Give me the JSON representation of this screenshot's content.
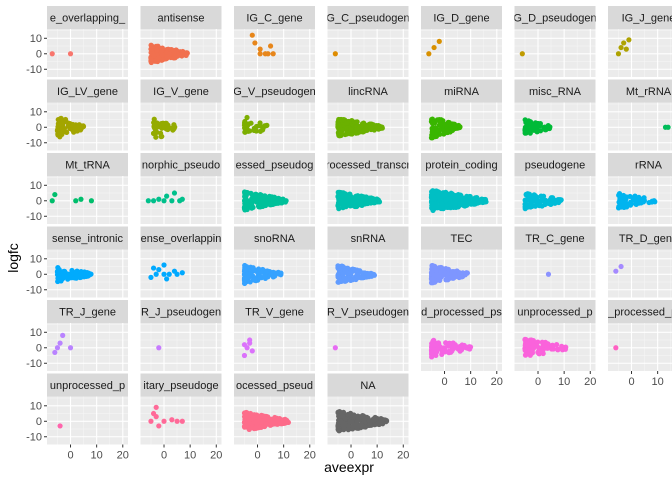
{
  "chart_data": {
    "type": "scatter",
    "xlabel": "aveexpr",
    "ylabel": "logfc",
    "xlim": [
      -9,
      22
    ],
    "ylim": [
      -15,
      16
    ],
    "x_ticks": [
      0,
      10,
      20
    ],
    "x_tick_labels": [
      "0",
      "10",
      "20"
    ],
    "y_ticks": [
      -10,
      0,
      10
    ],
    "y_tick_labels": [
      "-10",
      "0",
      "10"
    ],
    "grid": true,
    "legend": "none",
    "facets": [
      {
        "label": "e_overlapping_",
        "color": "#F8766D",
        "x": [
          -7,
          0
        ],
        "y": [
          0,
          0
        ]
      },
      {
        "label": "antisense",
        "color": "#F1704F",
        "x": [
          -5,
          9
        ],
        "y": [
          -6,
          6
        ],
        "n": 160
      },
      {
        "label": "IG_C_gene",
        "color": "#E7861B",
        "x": [
          -2,
          -1,
          1,
          3,
          5,
          6,
          1,
          4
        ],
        "y": [
          12,
          7,
          3,
          0,
          5,
          0,
          0,
          0
        ]
      },
      {
        "label": "G_C_pseudogen",
        "color": "#DE8C00",
        "x": [
          -6
        ],
        "y": [
          0
        ]
      },
      {
        "label": "IG_D_gene",
        "color": "#D89000",
        "x": [
          -6,
          -4,
          -2
        ],
        "y": [
          0,
          4,
          8
        ]
      },
      {
        "label": "G_D_pseudogen",
        "color": "#C09B00",
        "x": [
          -6
        ],
        "y": [
          0
        ]
      },
      {
        "label": "IG_J_gene",
        "color": "#AEA200",
        "x": [
          -5,
          -4,
          -3,
          -2,
          -1
        ],
        "y": [
          0,
          4,
          7,
          3,
          9
        ]
      },
      {
        "label": "IG_LV_gene",
        "color": "#A3A500",
        "x": [
          -5,
          5
        ],
        "y": [
          -6,
          7
        ],
        "n": 70
      },
      {
        "label": "IG_V_gene",
        "color": "#94AB00",
        "x": [
          -4,
          5
        ],
        "y": [
          -4,
          9
        ],
        "n": 45
      },
      {
        "label": "G_V_pseudogen",
        "color": "#7CAE00",
        "x": [
          -5,
          4
        ],
        "y": [
          -5,
          7
        ],
        "n": 30
      },
      {
        "label": "lincRNA",
        "color": "#6BB100",
        "x": [
          -5,
          12
        ],
        "y": [
          -6,
          6
        ],
        "n": 170
      },
      {
        "label": "miRNA",
        "color": "#39B600",
        "x": [
          -5,
          6
        ],
        "y": [
          -7,
          7
        ],
        "n": 80
      },
      {
        "label": "misc_RNA",
        "color": "#00BA38",
        "x": [
          -5,
          5
        ],
        "y": [
          -5,
          5
        ],
        "n": 55
      },
      {
        "label": "Mt_rRNA",
        "color": "#00BC59",
        "x": [
          13,
          14
        ],
        "y": [
          0,
          0
        ]
      },
      {
        "label": "Mt_tRNA",
        "color": "#00BE6C",
        "x": [
          -7,
          -6,
          2,
          4,
          8
        ],
        "y": [
          0,
          4,
          0,
          1,
          0
        ]
      },
      {
        "label": "norphic_pseudo",
        "color": "#00C08B",
        "x": [
          -6,
          -4,
          -2,
          0,
          1,
          3,
          4,
          6,
          7
        ],
        "y": [
          0,
          0,
          1,
          0,
          3,
          0,
          5,
          0,
          1
        ]
      },
      {
        "label": "essed_pseudog",
        "color": "#00C19A",
        "x": [
          -5,
          11
        ],
        "y": [
          -6,
          6
        ],
        "n": 150
      },
      {
        "label": "rocessed_transcr",
        "color": "#00C0AF",
        "x": [
          -5,
          11
        ],
        "y": [
          -6,
          6
        ],
        "n": 150
      },
      {
        "label": "protein_coding",
        "color": "#00BFC4",
        "x": [
          -5,
          16
        ],
        "y": [
          -7,
          7
        ],
        "n": 260
      },
      {
        "label": "pseudogene",
        "color": "#00BCD8",
        "x": [
          -5,
          9
        ],
        "y": [
          -5,
          6
        ],
        "n": 80
      },
      {
        "label": "rRNA",
        "color": "#00B4EF",
        "x": [
          -5,
          9
        ],
        "y": [
          -5,
          5
        ],
        "n": 55
      },
      {
        "label": "sense_intronic",
        "color": "#00ABFD",
        "x": [
          -5,
          8
        ],
        "y": [
          -5,
          5
        ],
        "n": 70
      },
      {
        "label": "ense_overlappin",
        "color": "#00A9FF",
        "x": [
          -5,
          -3,
          -2,
          0,
          1,
          2,
          4,
          5,
          7,
          -4,
          0
        ],
        "y": [
          -2,
          0,
          3,
          6,
          -3,
          0,
          2,
          0,
          1,
          4,
          0
        ]
      },
      {
        "label": "snoRNA",
        "color": "#35A2FF",
        "x": [
          -5,
          9
        ],
        "y": [
          -6,
          6
        ],
        "n": 100
      },
      {
        "label": "snRNA",
        "color": "#619CFF",
        "x": [
          -5,
          9
        ],
        "y": [
          -6,
          6
        ],
        "n": 110
      },
      {
        "label": "TEC",
        "color": "#7E96FF",
        "x": [
          -5,
          9
        ],
        "y": [
          -6,
          6
        ],
        "n": 110
      },
      {
        "label": "TR_C_gene",
        "color": "#8B93FF",
        "x": [
          4
        ],
        "y": [
          0
        ]
      },
      {
        "label": "TR_D_gene",
        "color": "#A58AFF",
        "x": [
          -6,
          -4
        ],
        "y": [
          2,
          5
        ]
      },
      {
        "label": "TR_J_gene",
        "color": "#B983FF",
        "x": [
          -6,
          -5,
          -4,
          -3,
          0
        ],
        "y": [
          -3,
          0,
          3,
          8,
          0
        ]
      },
      {
        "label": "R_J_pseudogen",
        "color": "#C77CFF",
        "x": [
          -2
        ],
        "y": [
          0
        ]
      },
      {
        "label": "TR_V_gene",
        "color": "#DB72FB",
        "x": [
          -5,
          -4,
          -3,
          -2,
          -5,
          -3
        ],
        "y": [
          -5,
          0,
          3,
          -2,
          2,
          5
        ]
      },
      {
        "label": "R_V_pseudogen",
        "color": "#E76BF3",
        "x": [
          -6
        ],
        "y": [
          0
        ]
      },
      {
        "label": "d_processed_ps",
        "color": "#F564E3",
        "x": [
          -5,
          10
        ],
        "y": [
          -6,
          6
        ],
        "n": 90
      },
      {
        "label": "unprocessed_p",
        "color": "#FA62DB",
        "x": [
          -5,
          11
        ],
        "y": [
          -6,
          6
        ],
        "n": 90
      },
      {
        "label": "_processed_pse",
        "color": "#FF61C3",
        "x": [
          -6
        ],
        "y": [
          0
        ]
      },
      {
        "label": "unprocessed_p",
        "color": "#FF65AC",
        "x": [
          -4
        ],
        "y": [
          -3
        ]
      },
      {
        "label": "itary_pseudoge",
        "color": "#FF6A98",
        "x": [
          -5,
          -4,
          -3,
          -2,
          0,
          3,
          5,
          7,
          -3
        ],
        "y": [
          0,
          5,
          9,
          -3,
          0,
          1,
          0,
          0,
          3
        ]
      },
      {
        "label": "ocessed_pseud",
        "color": "#FD6C8A",
        "x": [
          -5,
          12
        ],
        "y": [
          -6,
          6
        ],
        "n": 150
      },
      {
        "label": "NA",
        "color": "#666666",
        "x": [
          -5,
          14
        ],
        "y": [
          -7,
          7
        ],
        "n": 200
      }
    ]
  }
}
